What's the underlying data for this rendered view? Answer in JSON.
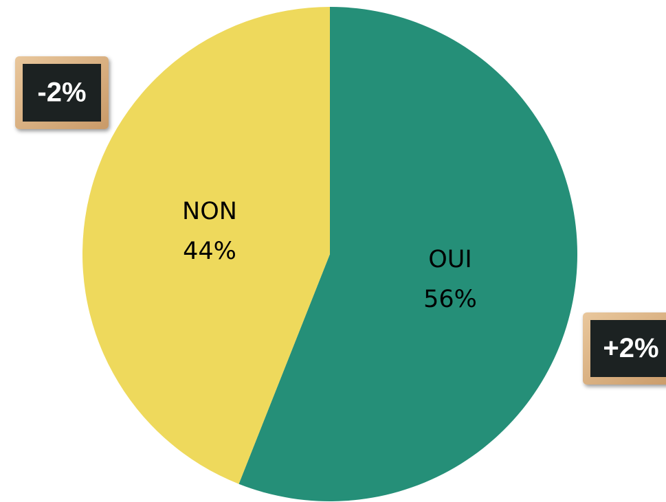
{
  "chart_data": {
    "type": "pie",
    "categories": [
      "OUI",
      "NON"
    ],
    "values": [
      56,
      44
    ],
    "value_labels": [
      "56%",
      "44%"
    ],
    "colors": [
      "#258f78",
      "#eed95c"
    ],
    "annotations": [
      "+2%",
      "-2%"
    ]
  }
}
